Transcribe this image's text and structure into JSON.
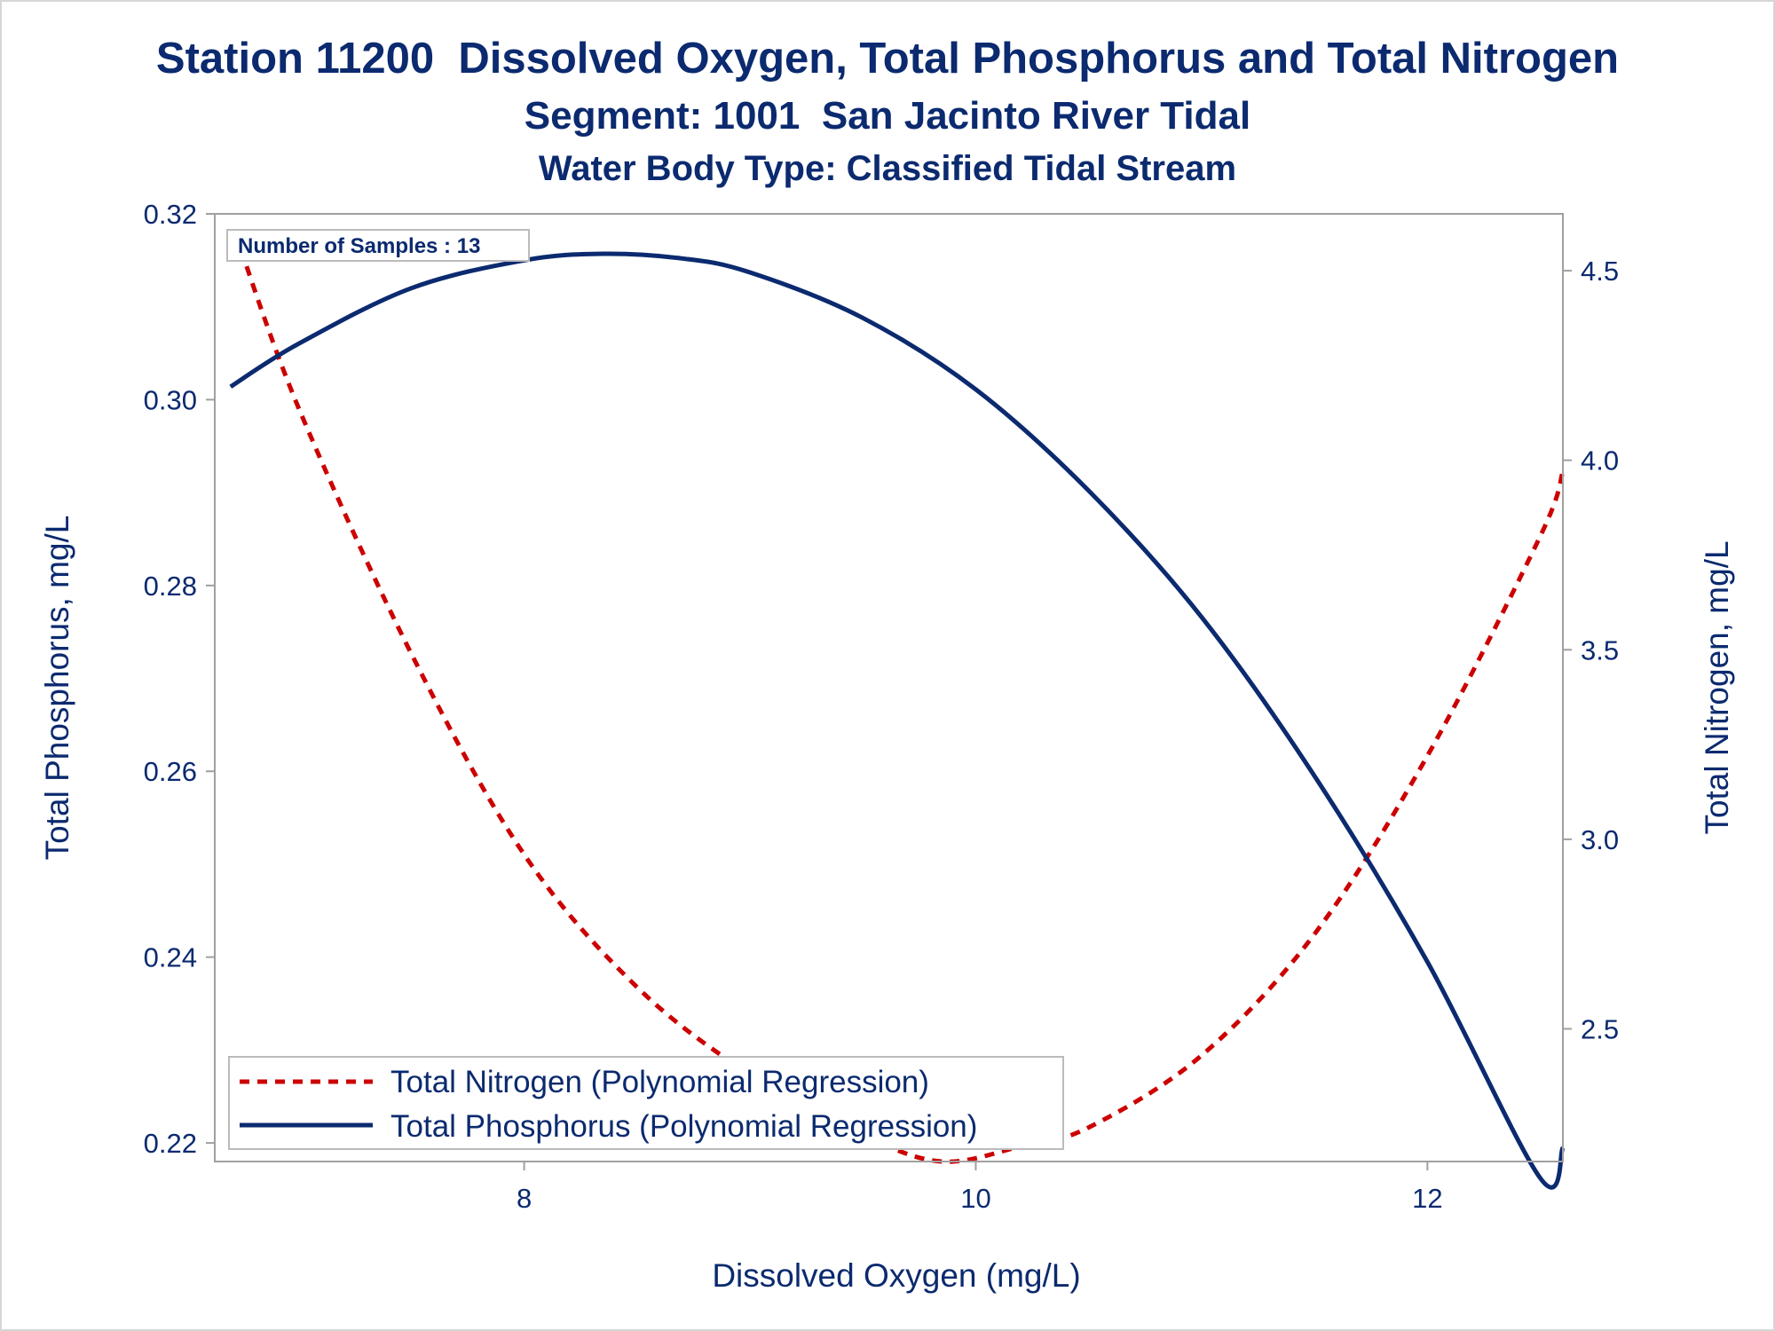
{
  "title": "Station 11200  Dissolved Oxygen, Total Phosphorus and Total Nitrogen",
  "subtitle": "Segment: 1001  San Jacinto River Tidal",
  "subtitle2": "Water Body Type: Classified Tidal Stream",
  "inset": "Number of Samples : 13",
  "colors": {
    "text": "#0b2a6f",
    "phosphorus": "#0b2a6f",
    "nitrogen": "#cc0000",
    "frame": "#a0a0a0"
  },
  "chart_data": {
    "type": "line",
    "xlabel": "Dissolved Oxygen (mg/L)",
    "ylabel": "Total Phosphorus, mg/L",
    "y2label": "Total Nitrogen, mg/L",
    "xlim": [
      6.63,
      12.6
    ],
    "ylim": [
      0.218,
      0.32
    ],
    "y2lim": [
      2.15,
      4.65
    ],
    "xticks": [
      "8",
      "10",
      "12"
    ],
    "yticks": [
      "0.22",
      "0.24",
      "0.26",
      "0.28",
      "0.30",
      "0.32"
    ],
    "y2ticks": [
      "2.5",
      "3.0",
      "3.5",
      "4.0",
      "4.5"
    ],
    "legend_position": "bottom-left",
    "series": [
      {
        "name": "Total Nitrogen (Polynomial Regression)",
        "axis": "y2",
        "style": "dashed",
        "x": [
          6.72,
          7.0,
          7.5,
          8.0,
          8.5,
          9.0,
          9.5,
          9.85,
          10.2,
          10.5,
          11.0,
          11.5,
          12.0,
          12.5,
          12.6
        ],
        "y": [
          4.6,
          4.14,
          3.49,
          2.96,
          2.61,
          2.38,
          2.22,
          2.15,
          2.19,
          2.24,
          2.43,
          2.75,
          3.22,
          3.8,
          3.97
        ]
      },
      {
        "name": "Total Phosphorus (Polynomial Regression)",
        "axis": "y",
        "style": "solid",
        "x": [
          6.7,
          7.0,
          7.5,
          8.0,
          8.35,
          8.7,
          9.0,
          9.5,
          10.0,
          10.5,
          11.0,
          11.5,
          12.0,
          12.5,
          12.6
        ],
        "y": [
          0.3014,
          0.306,
          0.312,
          0.315,
          0.3157,
          0.3152,
          0.3137,
          0.3088,
          0.3011,
          0.2902,
          0.2766,
          0.2595,
          0.2395,
          0.2162,
          0.2195
        ]
      }
    ]
  }
}
